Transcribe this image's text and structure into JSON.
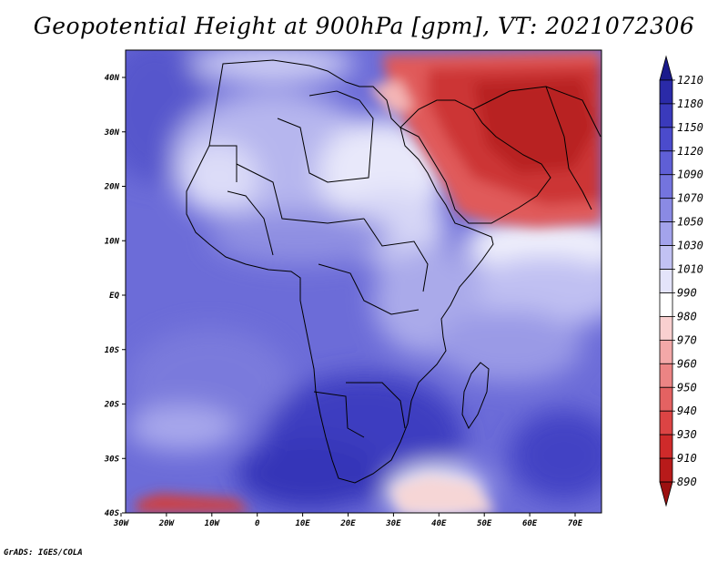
{
  "title": "Geopotential Height at 900hPa [gpm], VT: 2021072306",
  "footer": "GrADS: IGES/COLA",
  "map": {
    "lon_labels": [
      "30W",
      "20W",
      "10W",
      "0",
      "10E",
      "20E",
      "30E",
      "40E",
      "50E",
      "60E",
      "70E"
    ],
    "lat_labels": [
      "40N",
      "30N",
      "20N",
      "10N",
      "EQ",
      "10S",
      "20S",
      "30S",
      "40S"
    ]
  },
  "colorbar": {
    "labels": [
      "1210",
      "1180",
      "1150",
      "1120",
      "1090",
      "1070",
      "1050",
      "1030",
      "1010",
      "990",
      "980",
      "970",
      "960",
      "950",
      "940",
      "930",
      "910",
      "890"
    ],
    "colors": [
      "#1a1a8c",
      "#2a2aa8",
      "#3a3abc",
      "#4b4bcc",
      "#5f5fd6",
      "#7474de",
      "#8a8ae4",
      "#a3a3ec",
      "#c2c2f3",
      "#e4e4fa",
      "#ffffff",
      "#f9d0d0",
      "#f3a8a8",
      "#ec8484",
      "#e46262",
      "#dc4444",
      "#cf2a2a",
      "#b81a1a",
      "#9c1010"
    ]
  }
}
